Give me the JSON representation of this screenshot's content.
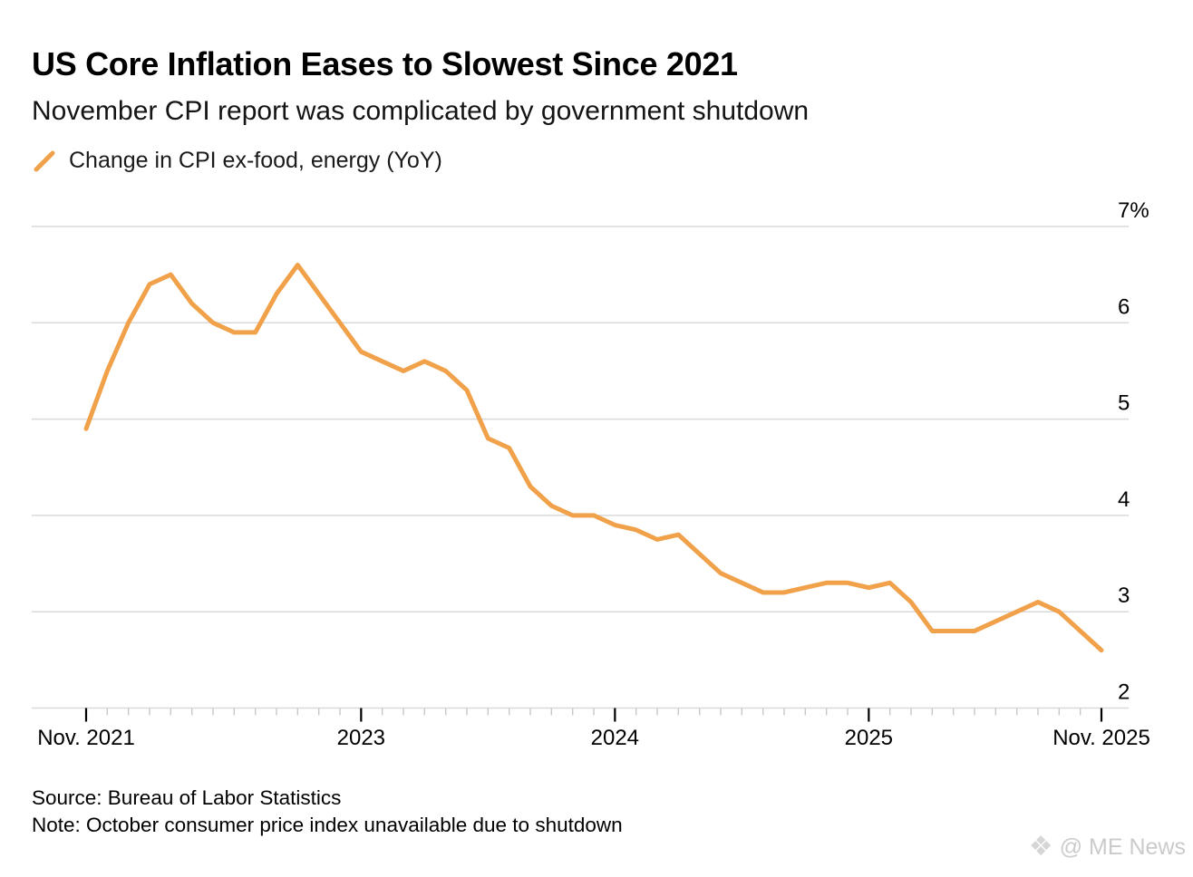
{
  "header": {
    "title": "US Core Inflation Eases to Slowest Since 2021",
    "subtitle": "November CPI report was complicated by government shutdown"
  },
  "legend": {
    "label": "Change in CPI ex-food, energy (YoY)",
    "marker": "slash-line-marker",
    "marker_color": "#F0A149"
  },
  "footer": {
    "source": "Source: Bureau of Labor Statistics",
    "note": "Note: October consumer price index unavailable due to shutdown"
  },
  "watermark": {
    "logo": "diamond-logo",
    "text": "@ ME News"
  },
  "colors": {
    "line": "#F0A149",
    "grid": "#d9d9d9",
    "tick_minor": "#c8c8c8",
    "tick_major": "#000000",
    "axis_label": "#000000"
  },
  "chart_data": {
    "type": "line",
    "title": "US Core Inflation Eases to Slowest Since 2021",
    "subtitle": "November CPI report was complicated by government shutdown",
    "xlabel": "",
    "ylabel": "",
    "unit": "%",
    "grid": "horizontal",
    "legend_position": "top-left",
    "ylim": [
      2,
      7.3
    ],
    "x": [
      "2021-11",
      "2021-12",
      "2022-01",
      "2022-02",
      "2022-03",
      "2022-04",
      "2022-05",
      "2022-06",
      "2022-07",
      "2022-08",
      "2022-09",
      "2022-10",
      "2022-11",
      "2022-12",
      "2023-01",
      "2023-02",
      "2023-03",
      "2023-04",
      "2023-05",
      "2023-06",
      "2023-07",
      "2023-08",
      "2023-09",
      "2023-10",
      "2023-11",
      "2023-12",
      "2024-01",
      "2024-02",
      "2024-03",
      "2024-04",
      "2024-05",
      "2024-06",
      "2024-07",
      "2024-08",
      "2024-09",
      "2024-10",
      "2024-11",
      "2024-12",
      "2025-01",
      "2025-02",
      "2025-03",
      "2025-04",
      "2025-05",
      "2025-06",
      "2025-07",
      "2025-08",
      "2025-09",
      "2025-10",
      "2025-11"
    ],
    "series": [
      {
        "name": "Change in CPI ex-food, energy (YoY)",
        "color": "#F0A149",
        "values": [
          4.9,
          5.5,
          6.0,
          6.4,
          6.5,
          6.2,
          6.0,
          5.9,
          5.9,
          6.3,
          6.6,
          6.3,
          6.0,
          5.7,
          5.6,
          5.5,
          5.6,
          5.5,
          5.3,
          4.8,
          4.7,
          4.3,
          4.1,
          4.0,
          4.0,
          3.9,
          3.85,
          3.75,
          3.8,
          3.6,
          3.4,
          3.3,
          3.2,
          3.2,
          3.25,
          3.3,
          3.3,
          3.25,
          3.3,
          3.1,
          2.8,
          2.8,
          2.8,
          2.9,
          3.0,
          3.1,
          3.0,
          null,
          2.6
        ]
      }
    ],
    "missing_points": [
      "2025-10"
    ],
    "y_ticks": [
      {
        "label": "7%",
        "value": 7
      },
      {
        "label": "6",
        "value": 6
      },
      {
        "label": "5",
        "value": 5
      },
      {
        "label": "4",
        "value": 4
      },
      {
        "label": "3",
        "value": 3
      },
      {
        "label": "2",
        "value": 2
      }
    ],
    "x_tick_labels": [
      {
        "label": "Nov. 2021",
        "month_index": 0
      },
      {
        "label": "2023",
        "month_index": 13
      },
      {
        "label": "2024",
        "month_index": 25
      },
      {
        "label": "2025",
        "month_index": 37
      },
      {
        "label": "Nov. 2025",
        "month_index": 48
      }
    ]
  }
}
